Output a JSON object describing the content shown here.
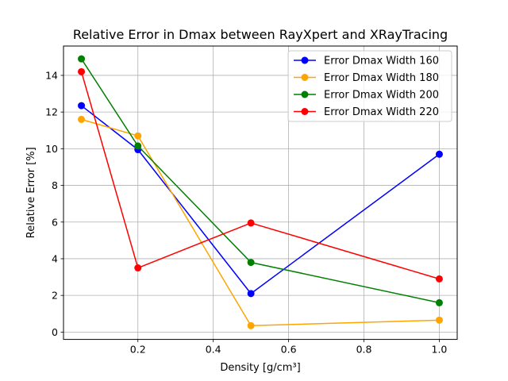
{
  "chart_data": {
    "type": "line",
    "title": "Relative Error in Dmax between RayXpert and XRayTracing",
    "xlabel": "Density [g/cm³]",
    "ylabel": "Relative Error [%]",
    "xlim": [
      0.0025,
      1.0475
    ],
    "ylim": [
      -0.4,
      15.6
    ],
    "xticks": [
      0.2,
      0.4,
      0.6,
      0.8,
      1.0
    ],
    "xtick_labels": [
      "0.2",
      "0.4",
      "0.6",
      "0.8",
      "1.0"
    ],
    "yticks": [
      0,
      2,
      4,
      6,
      8,
      10,
      12,
      14
    ],
    "ytick_labels": [
      "0",
      "2",
      "4",
      "6",
      "8",
      "10",
      "12",
      "14"
    ],
    "grid": true,
    "legend_position": "top-right",
    "x": [
      0.05,
      0.2,
      0.5,
      1.0
    ],
    "series": [
      {
        "name": "Error Dmax Width 160",
        "color": "#0000ff",
        "values": [
          12.35,
          9.95,
          2.1,
          9.7
        ]
      },
      {
        "name": "Error Dmax Width 180",
        "color": "#ffa500",
        "values": [
          11.6,
          10.7,
          0.35,
          0.65
        ]
      },
      {
        "name": "Error Dmax Width 200",
        "color": "#008000",
        "values": [
          14.9,
          10.15,
          3.8,
          1.6
        ]
      },
      {
        "name": "Error Dmax Width 220",
        "color": "#ff0000",
        "values": [
          14.2,
          3.5,
          5.95,
          2.9
        ]
      }
    ]
  }
}
